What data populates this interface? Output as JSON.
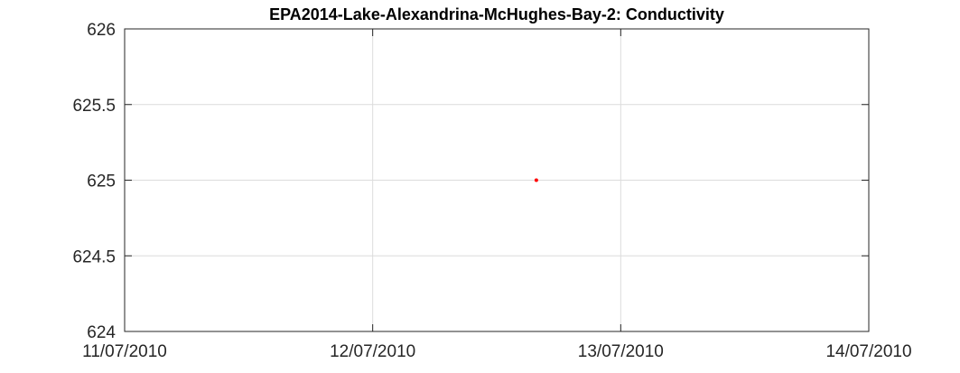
{
  "chart_data": {
    "type": "scatter",
    "title": "EPA2014-Lake-Alexandrina-McHughes-Bay-2: Conductivity",
    "xlabel": "",
    "ylabel": "",
    "x_ticks": [
      "11/07/2010",
      "12/07/2010",
      "13/07/2010",
      "14/07/2010"
    ],
    "xlim": [
      "2010-07-11",
      "2010-07-14"
    ],
    "y_ticks": [
      624,
      624.5,
      625,
      625.5,
      626
    ],
    "ylim": [
      624,
      626
    ],
    "grid": true,
    "series": [
      {
        "color": "#ff0000",
        "points": [
          {
            "x": "2010-07-12T15:50",
            "y": 625
          }
        ]
      }
    ]
  }
}
